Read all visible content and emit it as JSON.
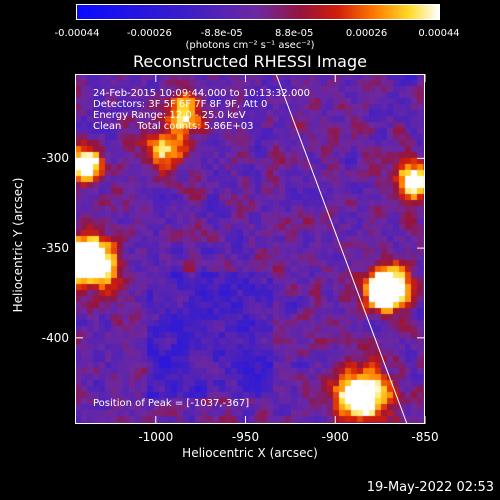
{
  "colorbar": {
    "ticks": [
      "-0.00044",
      "-0.00026",
      "-8.8e-05",
      "8.8e-05",
      "0.00026",
      "0.00044"
    ],
    "unit": "(photons cm⁻² s⁻¹ asec⁻²)",
    "range": [
      -0.00044,
      0.00044
    ]
  },
  "chart_data": {
    "type": "heatmap",
    "title": "Reconstructed RHESSI Image",
    "xlabel": "Heliocentric X (arcsec)",
    "ylabel": "Heliocentric Y (arcsec)",
    "xlim": [
      -1045,
      -850
    ],
    "ylim": [
      -448,
      -253
    ],
    "xticks": [
      "-1000",
      "-950",
      "-900",
      "-850"
    ],
    "xtick_values": [
      -1000,
      -950,
      -900,
      -850
    ],
    "yticks": [
      "-300",
      "-350",
      "-400"
    ],
    "ytick_values": [
      -300,
      -350,
      -400
    ],
    "limb_line": [
      [
        -933,
        -253
      ],
      [
        -860,
        -448
      ]
    ],
    "peak": [
      -1037,
      -367
    ],
    "annotations": {
      "time": "24-Feb-2015 10:09:44.000 to 10:13:32.000",
      "detectors": "Detectors: 3F 5F 6F 7F 8F 9F, Att 0",
      "energy": "Energy Range: 12.0 - 25.0 keV",
      "method": "Clean     Total counts: 5.86E+03",
      "peak": "Position of Peak = [-1037,-367]"
    }
  },
  "timestamp": "19-May-2022 02:53"
}
